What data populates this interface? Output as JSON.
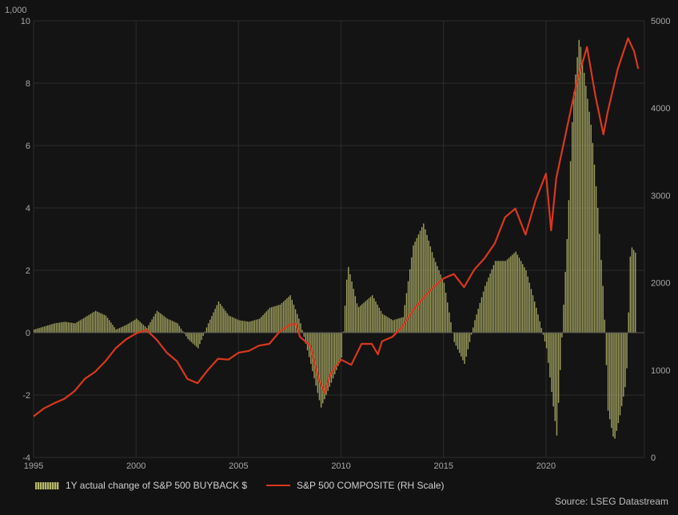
{
  "chart_data": {
    "type": "bar+line",
    "unit_label": "1,000",
    "x_ticks": [
      "1995",
      "2000",
      "2005",
      "2010",
      "2015",
      "2020"
    ],
    "x_range": [
      1995,
      2024.8
    ],
    "y_left": {
      "ticks": [
        "10",
        "8",
        "6",
        "4",
        "2",
        "0",
        "-2",
        "-4"
      ],
      "range": [
        -4,
        10
      ]
    },
    "y_right": {
      "ticks": [
        "5000",
        "4000",
        "3000",
        "2000",
        "1000",
        "0"
      ],
      "range": [
        0,
        5000
      ]
    },
    "grid": true,
    "legend_position": "bottom-left",
    "colors": {
      "bars": "#b8b86c",
      "line": "#d9381e",
      "background": "#121212",
      "grid": "#2c2c2c"
    },
    "series": [
      {
        "name": "1Y actual change of S&P 500 BUYBACK $",
        "kind": "bar",
        "axis": "left",
        "points": [
          [
            1995.0,
            0.1
          ],
          [
            1995.5,
            0.2
          ],
          [
            1996.0,
            0.3
          ],
          [
            1996.5,
            0.35
          ],
          [
            1997.0,
            0.3
          ],
          [
            1997.5,
            0.5
          ],
          [
            1998.0,
            0.7
          ],
          [
            1998.5,
            0.55
          ],
          [
            1999.0,
            0.1
          ],
          [
            1999.5,
            0.25
          ],
          [
            2000.0,
            0.45
          ],
          [
            2000.5,
            0.15
          ],
          [
            2001.0,
            0.7
          ],
          [
            2001.5,
            0.45
          ],
          [
            2002.0,
            0.3
          ],
          [
            2002.5,
            -0.2
          ],
          [
            2003.0,
            -0.5
          ],
          [
            2003.5,
            0.3
          ],
          [
            2004.0,
            1.0
          ],
          [
            2004.5,
            0.55
          ],
          [
            2005.0,
            0.4
          ],
          [
            2005.5,
            0.35
          ],
          [
            2006.0,
            0.45
          ],
          [
            2006.5,
            0.8
          ],
          [
            2007.0,
            0.9
          ],
          [
            2007.5,
            1.2
          ],
          [
            2008.0,
            0.3
          ],
          [
            2008.5,
            -1.0
          ],
          [
            2009.0,
            -2.4
          ],
          [
            2009.5,
            -1.6
          ],
          [
            2010.0,
            -0.8
          ],
          [
            2010.3,
            2.2
          ],
          [
            2010.8,
            0.8
          ],
          [
            2011.5,
            1.2
          ],
          [
            2012.0,
            0.6
          ],
          [
            2012.5,
            0.4
          ],
          [
            2013.0,
            0.5
          ],
          [
            2013.5,
            2.8
          ],
          [
            2014.0,
            3.5
          ],
          [
            2014.5,
            2.4
          ],
          [
            2015.0,
            1.6
          ],
          [
            2015.5,
            -0.3
          ],
          [
            2016.0,
            -1.0
          ],
          [
            2016.5,
            0.4
          ],
          [
            2017.0,
            1.5
          ],
          [
            2017.5,
            2.3
          ],
          [
            2018.0,
            2.3
          ],
          [
            2018.5,
            2.6
          ],
          [
            2019.0,
            2.0
          ],
          [
            2019.5,
            0.8
          ],
          [
            2020.0,
            -0.5
          ],
          [
            2020.5,
            -3.3
          ],
          [
            2021.0,
            3.0
          ],
          [
            2021.3,
            7.5
          ],
          [
            2021.6,
            9.5
          ],
          [
            2021.9,
            8.0
          ],
          [
            2022.2,
            6.5
          ],
          [
            2022.5,
            4.0
          ],
          [
            2022.8,
            1.0
          ],
          [
            2023.0,
            -2.5
          ],
          [
            2023.3,
            -3.5
          ],
          [
            2023.6,
            -2.6
          ],
          [
            2023.9,
            -1.5
          ],
          [
            2024.1,
            2.8
          ],
          [
            2024.4,
            2.5
          ]
        ]
      },
      {
        "name": "S&P 500 COMPOSITE (RH Scale)",
        "kind": "line",
        "axis": "right",
        "points": [
          [
            1995.0,
            470
          ],
          [
            1995.5,
            560
          ],
          [
            1996.0,
            620
          ],
          [
            1996.5,
            670
          ],
          [
            1997.0,
            760
          ],
          [
            1997.5,
            900
          ],
          [
            1998.0,
            980
          ],
          [
            1998.5,
            1100
          ],
          [
            1999.0,
            1250
          ],
          [
            1999.5,
            1350
          ],
          [
            2000.0,
            1420
          ],
          [
            2000.5,
            1460
          ],
          [
            2001.0,
            1350
          ],
          [
            2001.5,
            1200
          ],
          [
            2002.0,
            1100
          ],
          [
            2002.5,
            900
          ],
          [
            2003.0,
            850
          ],
          [
            2003.5,
            1000
          ],
          [
            2004.0,
            1130
          ],
          [
            2004.5,
            1120
          ],
          [
            2005.0,
            1200
          ],
          [
            2005.5,
            1220
          ],
          [
            2006.0,
            1280
          ],
          [
            2006.5,
            1300
          ],
          [
            2007.0,
            1440
          ],
          [
            2007.5,
            1520
          ],
          [
            2007.8,
            1530
          ],
          [
            2008.0,
            1380
          ],
          [
            2008.5,
            1280
          ],
          [
            2008.9,
            900
          ],
          [
            2009.2,
            740
          ],
          [
            2009.5,
            960
          ],
          [
            2010.0,
            1120
          ],
          [
            2010.5,
            1060
          ],
          [
            2011.0,
            1300
          ],
          [
            2011.5,
            1300
          ],
          [
            2011.8,
            1180
          ],
          [
            2012.0,
            1330
          ],
          [
            2012.5,
            1380
          ],
          [
            2013.0,
            1500
          ],
          [
            2013.5,
            1680
          ],
          [
            2014.0,
            1820
          ],
          [
            2014.5,
            1950
          ],
          [
            2015.0,
            2050
          ],
          [
            2015.5,
            2100
          ],
          [
            2016.0,
            1950
          ],
          [
            2016.5,
            2150
          ],
          [
            2017.0,
            2280
          ],
          [
            2017.5,
            2450
          ],
          [
            2018.0,
            2750
          ],
          [
            2018.5,
            2850
          ],
          [
            2019.0,
            2550
          ],
          [
            2019.5,
            2950
          ],
          [
            2020.0,
            3250
          ],
          [
            2020.25,
            2600
          ],
          [
            2020.5,
            3200
          ],
          [
            2021.0,
            3750
          ],
          [
            2021.5,
            4300
          ],
          [
            2022.0,
            4700
          ],
          [
            2022.4,
            4150
          ],
          [
            2022.8,
            3700
          ],
          [
            2023.0,
            3950
          ],
          [
            2023.5,
            4450
          ],
          [
            2024.0,
            4800
          ],
          [
            2024.3,
            4650
          ],
          [
            2024.5,
            4450
          ]
        ]
      }
    ],
    "legend": [
      {
        "label": "1Y actual change of S&P 500 BUYBACK $"
      },
      {
        "label": "S&P 500 COMPOSITE (RH Scale)"
      }
    ],
    "source": "Source: LSEG Datastream"
  }
}
